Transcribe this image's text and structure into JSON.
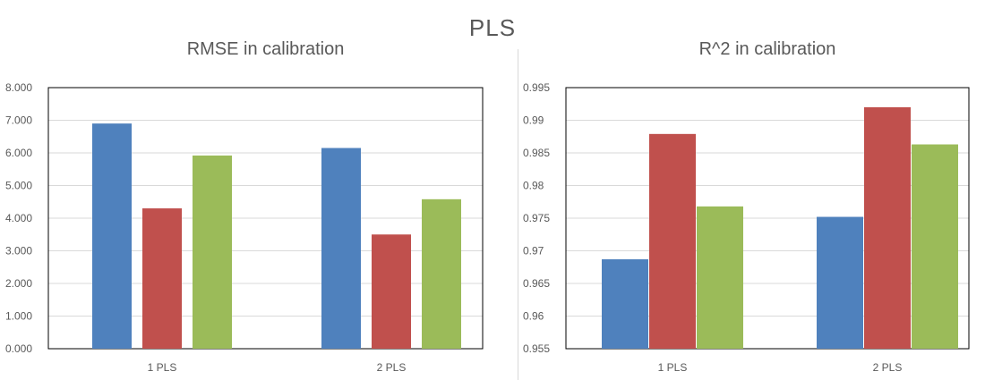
{
  "page_title": "PLS",
  "colors": {
    "series1": "#4F81BD",
    "series2": "#C0504D",
    "series3": "#9BBB59",
    "grid": "#D9D9D9",
    "axis": "#000000"
  },
  "chart_data": [
    {
      "type": "bar",
      "title": "RMSE in calibration",
      "categories": [
        "1 PLS",
        "2 PLS"
      ],
      "series": [
        {
          "values": [
            6.9,
            6.15
          ]
        },
        {
          "values": [
            4.3,
            3.5
          ]
        },
        {
          "values": [
            5.92,
            4.58
          ]
        }
      ],
      "ylim": [
        0,
        8
      ],
      "yticks": [
        "0.000",
        "1.000",
        "2.000",
        "3.000",
        "4.000",
        "5.000",
        "6.000",
        "7.000",
        "8.000"
      ],
      "grid": true
    },
    {
      "type": "bar",
      "title": "R^2 in calibration",
      "categories": [
        "1 PLS",
        "2 PLS"
      ],
      "series": [
        {
          "values": [
            0.9687,
            0.9752
          ]
        },
        {
          "values": [
            0.9879,
            0.992
          ]
        },
        {
          "values": [
            0.9768,
            0.9863
          ]
        }
      ],
      "ylim": [
        0.955,
        0.995
      ],
      "yticks": [
        "0.955",
        "0.96",
        "0.965",
        "0.97",
        "0.975",
        "0.98",
        "0.985",
        "0.99",
        "0.995"
      ],
      "grid": true
    }
  ]
}
